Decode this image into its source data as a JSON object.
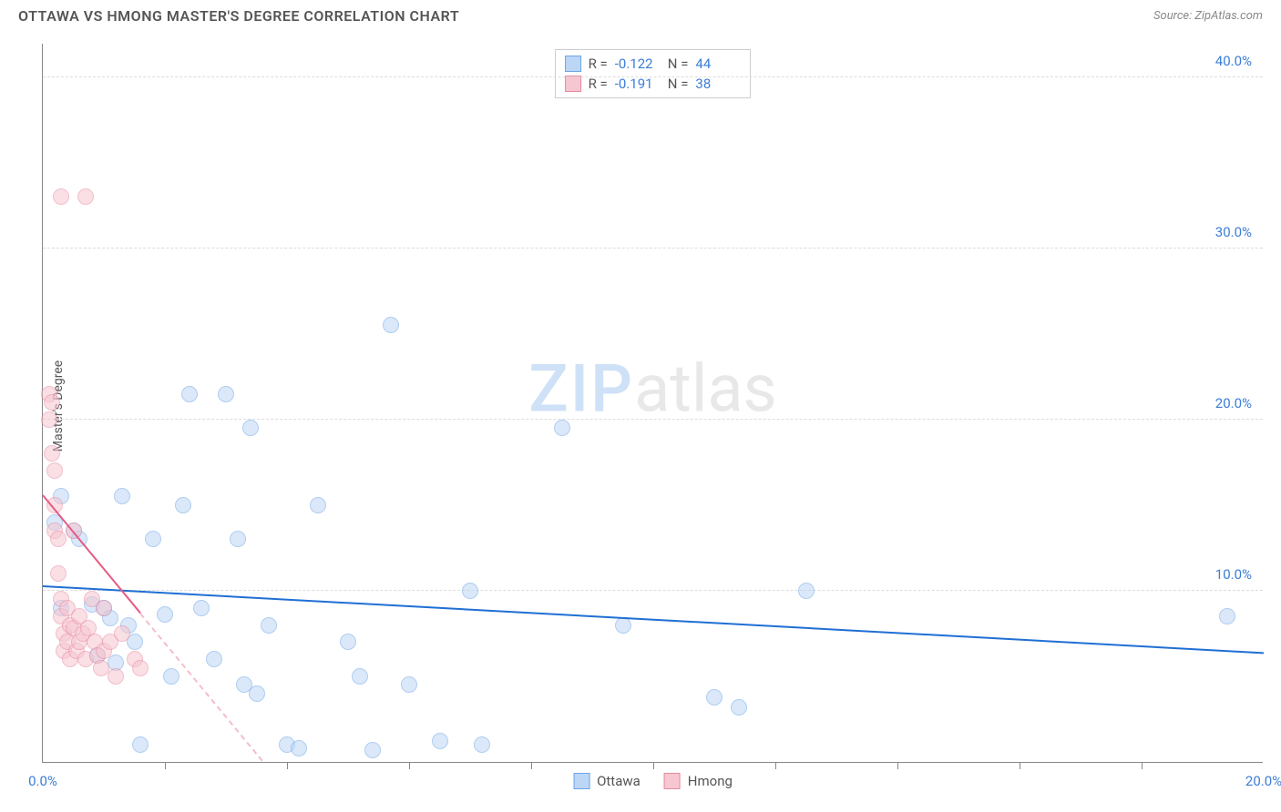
{
  "header": {
    "title": "OTTAWA VS HMONG MASTER'S DEGREE CORRELATION CHART",
    "source": "Source: ZipAtlas.com"
  },
  "watermark": {
    "part1": "ZIP",
    "part2": "atlas"
  },
  "chart": {
    "type": "scatter",
    "ylabel": "Master's Degree",
    "xlim": [
      0,
      20
    ],
    "ylim": [
      0,
      42
    ],
    "xticks_major_labels": [
      "0.0%",
      "20.0%"
    ],
    "xticks_major_pos": [
      0,
      20
    ],
    "xticks_minor_pos": [
      2,
      4,
      6,
      8,
      10,
      12,
      14,
      16,
      18
    ],
    "yticks": [
      10,
      20,
      30,
      40
    ],
    "ytick_labels": [
      "10.0%",
      "20.0%",
      "30.0%",
      "40.0%"
    ],
    "grid_color": "#dddddd",
    "axis_color": "#888888",
    "background_color": "#ffffff",
    "tick_label_color": "#3b7dd8",
    "series": [
      {
        "name": "Ottawa",
        "fill": "#bcd6f5",
        "stroke": "#6ea6e6",
        "marker_radius": 9,
        "fill_opacity": 0.55,
        "trend": {
          "x1": 0,
          "y1": 10.2,
          "x2": 20,
          "y2": 6.3,
          "color": "#1f6fd4",
          "width": 2
        },
        "R": "-0.122",
        "N": "44",
        "points": [
          [
            0.2,
            14.0
          ],
          [
            0.3,
            15.5
          ],
          [
            0.3,
            9.0
          ],
          [
            0.5,
            13.5
          ],
          [
            0.6,
            13.0
          ],
          [
            0.8,
            9.2
          ],
          [
            0.9,
            6.2
          ],
          [
            1.0,
            9.0
          ],
          [
            1.1,
            8.4
          ],
          [
            1.2,
            5.8
          ],
          [
            1.3,
            15.5
          ],
          [
            1.4,
            8.0
          ],
          [
            1.5,
            7.0
          ],
          [
            1.6,
            1.0
          ],
          [
            1.8,
            13.0
          ],
          [
            2.0,
            8.6
          ],
          [
            2.1,
            5.0
          ],
          [
            2.3,
            15.0
          ],
          [
            2.4,
            21.5
          ],
          [
            2.6,
            9.0
          ],
          [
            2.8,
            6.0
          ],
          [
            3.0,
            21.5
          ],
          [
            3.2,
            13.0
          ],
          [
            3.3,
            4.5
          ],
          [
            3.4,
            19.5
          ],
          [
            3.5,
            4.0
          ],
          [
            3.7,
            8.0
          ],
          [
            4.0,
            1.0
          ],
          [
            4.2,
            0.8
          ],
          [
            4.5,
            15.0
          ],
          [
            5.0,
            7.0
          ],
          [
            5.2,
            5.0
          ],
          [
            5.4,
            0.7
          ],
          [
            5.7,
            25.5
          ],
          [
            6.0,
            4.5
          ],
          [
            6.5,
            1.2
          ],
          [
            7.0,
            10.0
          ],
          [
            7.2,
            1.0
          ],
          [
            8.5,
            19.5
          ],
          [
            9.5,
            8.0
          ],
          [
            11.0,
            3.8
          ],
          [
            11.4,
            3.2
          ],
          [
            12.5,
            10.0
          ],
          [
            19.4,
            8.5
          ]
        ]
      },
      {
        "name": "Hmong",
        "fill": "#f6c6d1",
        "stroke": "#e88aa2",
        "marker_radius": 9,
        "fill_opacity": 0.55,
        "trend": {
          "x1": 0,
          "y1": 15.5,
          "x2": 3.6,
          "y2": 0,
          "color": "#e55b82",
          "width": 2,
          "dashed_after_x": 1.6
        },
        "R": "-0.191",
        "N": "38",
        "points": [
          [
            0.1,
            21.5
          ],
          [
            0.1,
            20.0
          ],
          [
            0.15,
            18.0
          ],
          [
            0.15,
            21.0
          ],
          [
            0.2,
            17.0
          ],
          [
            0.2,
            15.0
          ],
          [
            0.2,
            13.5
          ],
          [
            0.25,
            13.0
          ],
          [
            0.25,
            11.0
          ],
          [
            0.3,
            9.5
          ],
          [
            0.3,
            8.5
          ],
          [
            0.3,
            33.0
          ],
          [
            0.35,
            7.5
          ],
          [
            0.35,
            6.5
          ],
          [
            0.4,
            9.0
          ],
          [
            0.4,
            7.0
          ],
          [
            0.45,
            8.0
          ],
          [
            0.45,
            6.0
          ],
          [
            0.5,
            13.5
          ],
          [
            0.5,
            7.8
          ],
          [
            0.55,
            6.5
          ],
          [
            0.6,
            7.0
          ],
          [
            0.6,
            8.5
          ],
          [
            0.65,
            7.5
          ],
          [
            0.7,
            6.0
          ],
          [
            0.7,
            33.0
          ],
          [
            0.75,
            7.8
          ],
          [
            0.8,
            9.5
          ],
          [
            0.85,
            7.0
          ],
          [
            0.9,
            6.2
          ],
          [
            0.95,
            5.5
          ],
          [
            1.0,
            9.0
          ],
          [
            1.0,
            6.5
          ],
          [
            1.1,
            7.0
          ],
          [
            1.2,
            5.0
          ],
          [
            1.3,
            7.5
          ],
          [
            1.5,
            6.0
          ],
          [
            1.6,
            5.5
          ]
        ]
      }
    ]
  },
  "legend_bottom": [
    "Ottawa",
    "Hmong"
  ]
}
